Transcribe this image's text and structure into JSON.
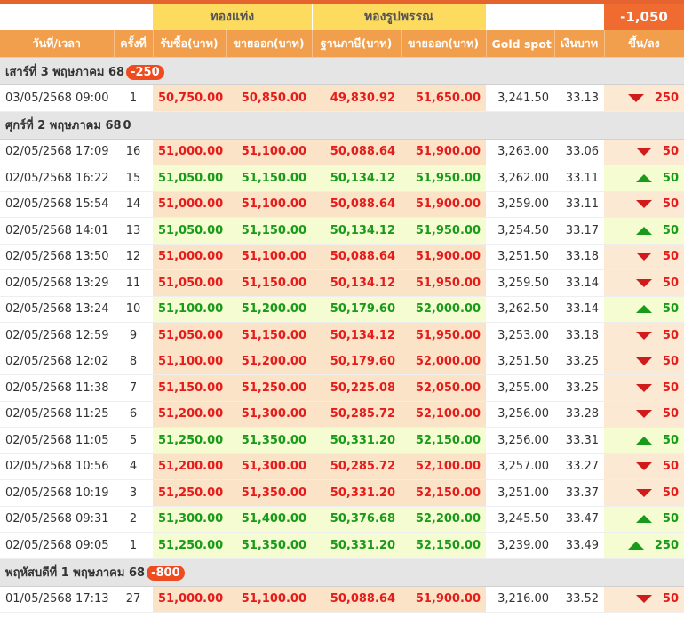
{
  "header": {
    "group_bar": "ทองแท่ง",
    "group_ornament": "ทองรูปพรรณ",
    "total_change": "-1,050",
    "columns": [
      "วันที่/เวลา",
      "ครั้งที่",
      "รับซื้อ(บาท)",
      "ขายออก(บาท)",
      "ฐานภาษี(บาท)",
      "ขายออก(บาท)",
      "Gold spot",
      "เงินบาท",
      "ขึ้น/ลง"
    ]
  },
  "days": [
    {
      "label": "เสาร์ที่ 3 พฤษภาคม 68",
      "change": "-250",
      "rows": [
        {
          "date": "03/05/2568 09:00",
          "n": "1",
          "buy": "50,750.00",
          "sell": "50,850.00",
          "tax": "49,830.92",
          "osell": "51,650.00",
          "spot": "3,241.50",
          "thb": "33.13",
          "dir": "down",
          "chg": "250"
        }
      ]
    },
    {
      "label": "ศุกร์ที่ 2 พฤษภาคม 68",
      "change": "0",
      "rows": [
        {
          "date": "02/05/2568 17:09",
          "n": "16",
          "buy": "51,000.00",
          "sell": "51,100.00",
          "tax": "50,088.64",
          "osell": "51,900.00",
          "spot": "3,263.00",
          "thb": "33.06",
          "dir": "down",
          "chg": "50"
        },
        {
          "date": "02/05/2568 16:22",
          "n": "15",
          "buy": "51,050.00",
          "sell": "51,150.00",
          "tax": "50,134.12",
          "osell": "51,950.00",
          "spot": "3,262.00",
          "thb": "33.11",
          "dir": "up",
          "chg": "50"
        },
        {
          "date": "02/05/2568 15:54",
          "n": "14",
          "buy": "51,000.00",
          "sell": "51,100.00",
          "tax": "50,088.64",
          "osell": "51,900.00",
          "spot": "3,259.00",
          "thb": "33.11",
          "dir": "down",
          "chg": "50"
        },
        {
          "date": "02/05/2568 14:01",
          "n": "13",
          "buy": "51,050.00",
          "sell": "51,150.00",
          "tax": "50,134.12",
          "osell": "51,950.00",
          "spot": "3,254.50",
          "thb": "33.17",
          "dir": "up",
          "chg": "50"
        },
        {
          "date": "02/05/2568 13:50",
          "n": "12",
          "buy": "51,000.00",
          "sell": "51,100.00",
          "tax": "50,088.64",
          "osell": "51,900.00",
          "spot": "3,251.50",
          "thb": "33.18",
          "dir": "down",
          "chg": "50"
        },
        {
          "date": "02/05/2568 13:29",
          "n": "11",
          "buy": "51,050.00",
          "sell": "51,150.00",
          "tax": "50,134.12",
          "osell": "51,950.00",
          "spot": "3,259.50",
          "thb": "33.14",
          "dir": "down",
          "chg": "50"
        },
        {
          "date": "02/05/2568 13:24",
          "n": "10",
          "buy": "51,100.00",
          "sell": "51,200.00",
          "tax": "50,179.60",
          "osell": "52,000.00",
          "spot": "3,262.50",
          "thb": "33.14",
          "dir": "up",
          "chg": "50"
        },
        {
          "date": "02/05/2568 12:59",
          "n": "9",
          "buy": "51,050.00",
          "sell": "51,150.00",
          "tax": "50,134.12",
          "osell": "51,950.00",
          "spot": "3,253.00",
          "thb": "33.18",
          "dir": "down",
          "chg": "50"
        },
        {
          "date": "02/05/2568 12:02",
          "n": "8",
          "buy": "51,100.00",
          "sell": "51,200.00",
          "tax": "50,179.60",
          "osell": "52,000.00",
          "spot": "3,251.50",
          "thb": "33.25",
          "dir": "down",
          "chg": "50"
        },
        {
          "date": "02/05/2568 11:38",
          "n": "7",
          "buy": "51,150.00",
          "sell": "51,250.00",
          "tax": "50,225.08",
          "osell": "52,050.00",
          "spot": "3,255.00",
          "thb": "33.25",
          "dir": "down",
          "chg": "50"
        },
        {
          "date": "02/05/2568 11:25",
          "n": "6",
          "buy": "51,200.00",
          "sell": "51,300.00",
          "tax": "50,285.72",
          "osell": "52,100.00",
          "spot": "3,256.00",
          "thb": "33.28",
          "dir": "down",
          "chg": "50"
        },
        {
          "date": "02/05/2568 11:05",
          "n": "5",
          "buy": "51,250.00",
          "sell": "51,350.00",
          "tax": "50,331.20",
          "osell": "52,150.00",
          "spot": "3,256.00",
          "thb": "33.31",
          "dir": "up",
          "chg": "50"
        },
        {
          "date": "02/05/2568 10:56",
          "n": "4",
          "buy": "51,200.00",
          "sell": "51,300.00",
          "tax": "50,285.72",
          "osell": "52,100.00",
          "spot": "3,257.00",
          "thb": "33.27",
          "dir": "down",
          "chg": "50"
        },
        {
          "date": "02/05/2568 10:19",
          "n": "3",
          "buy": "51,250.00",
          "sell": "51,350.00",
          "tax": "50,331.20",
          "osell": "52,150.00",
          "spot": "3,251.00",
          "thb": "33.37",
          "dir": "down",
          "chg": "50"
        },
        {
          "date": "02/05/2568 09:31",
          "n": "2",
          "buy": "51,300.00",
          "sell": "51,400.00",
          "tax": "50,376.68",
          "osell": "52,200.00",
          "spot": "3,245.50",
          "thb": "33.47",
          "dir": "up",
          "chg": "50"
        },
        {
          "date": "02/05/2568 09:05",
          "n": "1",
          "buy": "51,250.00",
          "sell": "51,350.00",
          "tax": "50,331.20",
          "osell": "52,150.00",
          "spot": "3,239.00",
          "thb": "33.49",
          "dir": "up",
          "chg": "250"
        }
      ]
    },
    {
      "label": "พฤหัสบดีที่ 1 พฤษภาคม 68",
      "change": "-800",
      "rows": [
        {
          "date": "01/05/2568 17:13",
          "n": "27",
          "buy": "51,000.00",
          "sell": "51,100.00",
          "tax": "50,088.64",
          "osell": "51,900.00",
          "spot": "3,216.00",
          "thb": "33.52",
          "dir": "down",
          "chg": "50"
        }
      ]
    }
  ]
}
